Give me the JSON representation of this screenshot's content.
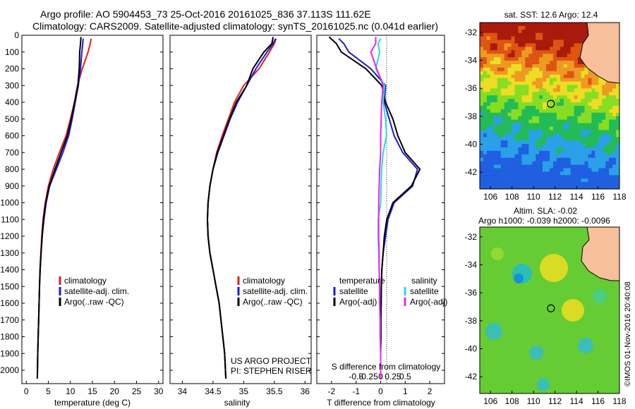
{
  "header": {
    "line1": "Argo profile: AO 5904453_73 25-Oct-2016 20161025_836 37.113S 111.62E",
    "line2": "Climatology: CARS2009. Satellite-adjusted climatology: synTS_20161025.nc (0.041d earlier)"
  },
  "colors": {
    "climatology": "#dd2020",
    "satellite": "#1a1adf",
    "argo": "#000000",
    "sal_satellite": "#22dddd",
    "sal_argo": "#ee22ee",
    "land": "#f7c09a"
  },
  "panel_t": {
    "xlabel": "temperature (deg C)",
    "xticks": [
      "0",
      "5",
      "10",
      "15",
      "20",
      "25",
      "30"
    ],
    "legend": [
      "climatology",
      "satellite-adj. clim.",
      "Argo(..raw -QC)"
    ]
  },
  "panel_s": {
    "xlabel": "salinity",
    "xticks": [
      "34",
      "34.5",
      "35",
      "35.5",
      "36"
    ],
    "legend": [
      "climatology",
      "satellite-adj. clim.",
      "Argo(..raw -QC)"
    ],
    "credit1": "US ARGO PROJECT",
    "credit2": "PI: STEPHEN RISER"
  },
  "panel_d": {
    "xlabel": "T difference from climatology",
    "xlabel_s": "S difference from climatology",
    "xticks_t": [
      "-2",
      "-1",
      "0",
      "1",
      "2"
    ],
    "xticks_s": [
      "-0.5",
      "-0.25",
      "0",
      "0.25",
      "0.5"
    ],
    "leg_temp_head": "temperature",
    "leg_sal_head": "salinity",
    "leg_items": [
      "satellite",
      "Argo(-adj)"
    ]
  },
  "depth_ticks": [
    "0",
    "100",
    "200",
    "300",
    "400",
    "500",
    "600",
    "700",
    "800",
    "900",
    "1000",
    "1100",
    "1200",
    "1300",
    "1400",
    "1500",
    "1600",
    "1700",
    "1800",
    "1900",
    "2000"
  ],
  "map_sst": {
    "title": "sat. SST: 12.6 Argo: 12.4",
    "lat_ticks": [
      "-32",
      "-34",
      "-36",
      "-38",
      "-40",
      "-42"
    ],
    "lon_ticks": [
      "106",
      "108",
      "110",
      "112",
      "114",
      "116",
      "118"
    ]
  },
  "map_sla": {
    "title1": "Altim. SLA: -0.02",
    "title2": "Argo h1000: -0.039 h2000: -0.0096",
    "lat_ticks": [
      "-32",
      "-34",
      "-36",
      "-38",
      "-40",
      "-42"
    ],
    "lon_ticks": [
      "106",
      "108",
      "110",
      "112",
      "114",
      "116",
      "118"
    ]
  },
  "side_text": "©IMOS 01-Nov-2016 20:40:08",
  "chart_data": [
    {
      "type": "line",
      "xlabel": "temperature (deg C)",
      "ylabel": "",
      "xlim": [
        -1,
        31
      ],
      "ylim": [
        2080,
        0
      ],
      "series": [
        {
          "name": "climatology",
          "x": [
            14.7,
            14.5,
            14.0,
            12.7,
            11.6,
            10.9,
            10.0,
            9.0,
            7.5,
            6.1,
            5.0,
            4.3,
            3.8,
            3.5,
            3.3,
            3.1,
            3.0,
            2.9,
            2.8,
            2.7,
            2.6,
            2.5
          ],
          "y": [
            20,
            50,
            100,
            200,
            300,
            400,
            500,
            600,
            700,
            800,
            900,
            1000,
            1100,
            1200,
            1300,
            1400,
            1500,
            1600,
            1700,
            1800,
            1900,
            2050
          ]
        },
        {
          "name": "satellite-adj. clim.",
          "x": [
            12.9,
            12.8,
            12.6,
            12.3,
            11.8,
            11.1,
            10.4,
            9.6,
            8.3,
            6.8,
            5.3,
            4.5,
            4.0,
            3.6,
            3.35,
            3.15,
            3.0,
            2.9,
            2.8,
            2.7,
            2.6,
            2.5
          ],
          "y": [
            20,
            50,
            100,
            200,
            300,
            400,
            500,
            600,
            700,
            800,
            900,
            1000,
            1100,
            1200,
            1300,
            1400,
            1500,
            1600,
            1700,
            1800,
            1900,
            2050
          ]
        },
        {
          "name": "Argo(..raw -QC)",
          "x": [
            12.4,
            12.3,
            12.1,
            12.0,
            11.7,
            11.0,
            10.2,
            9.3,
            7.9,
            6.5,
            5.2,
            4.4,
            3.9,
            3.6,
            3.35,
            3.15,
            3.0,
            2.9,
            2.8,
            2.7,
            2.6,
            2.5
          ],
          "y": [
            10,
            50,
            100,
            200,
            300,
            400,
            500,
            600,
            700,
            800,
            900,
            1000,
            1100,
            1200,
            1300,
            1400,
            1500,
            1600,
            1700,
            1800,
            1900,
            2050
          ]
        }
      ]
    },
    {
      "type": "line",
      "xlabel": "salinity",
      "ylabel": "",
      "xlim": [
        33.8,
        36.1
      ],
      "ylim": [
        2080,
        0
      ],
      "series": [
        {
          "name": "climatology",
          "x": [
            35.53,
            35.5,
            35.42,
            35.25,
            35.0,
            34.85,
            34.75,
            34.65,
            34.56,
            34.5,
            34.45,
            34.42,
            34.41,
            34.42,
            34.45,
            34.5,
            34.55,
            34.6,
            34.63,
            34.66,
            34.69,
            34.71
          ],
          "y": [
            20,
            50,
            100,
            200,
            300,
            400,
            500,
            600,
            700,
            800,
            900,
            1000,
            1100,
            1200,
            1300,
            1400,
            1500,
            1600,
            1700,
            1800,
            1900,
            2050
          ]
        },
        {
          "name": "satellite-adj. clim.",
          "x": [
            35.52,
            35.48,
            35.38,
            35.2,
            35.05,
            34.9,
            34.78,
            34.68,
            34.58,
            34.5,
            34.45,
            34.42,
            34.41,
            34.42,
            34.45,
            34.5,
            34.55,
            34.6,
            34.63,
            34.66,
            34.69,
            34.71
          ],
          "y": [
            20,
            50,
            100,
            200,
            300,
            400,
            500,
            600,
            700,
            800,
            900,
            1000,
            1100,
            1200,
            1300,
            1400,
            1500,
            1600,
            1700,
            1800,
            1900,
            2050
          ]
        },
        {
          "name": "Argo(..raw -QC)",
          "x": [
            35.48,
            35.46,
            35.33,
            35.15,
            35.05,
            34.88,
            34.77,
            34.67,
            34.57,
            34.5,
            34.45,
            34.42,
            34.41,
            34.42,
            34.45,
            34.5,
            34.55,
            34.6,
            34.63,
            34.66,
            34.69,
            34.71
          ],
          "y": [
            10,
            50,
            100,
            200,
            300,
            400,
            500,
            600,
            700,
            800,
            900,
            1000,
            1100,
            1200,
            1300,
            1400,
            1500,
            1600,
            1700,
            1800,
            1900,
            2050
          ]
        }
      ]
    },
    {
      "type": "line",
      "xlabel": "T difference from climatology",
      "ylabel": "",
      "xlim": [
        -2.6,
        2.6
      ],
      "ylim": [
        2080,
        0
      ],
      "series": [
        {
          "name": "temperature satellite",
          "x": [
            -1.7,
            -1.5,
            -1.3,
            -0.4,
            0.2,
            0.15,
            0.35,
            0.55,
            0.9,
            1.5,
            1.3,
            0.55,
            0.3,
            0.2,
            0.1,
            0.05,
            0.03,
            0.02,
            0.01,
            0.01,
            0.0,
            0.0
          ],
          "y": [
            20,
            50,
            100,
            200,
            300,
            400,
            500,
            600,
            700,
            800,
            900,
            1000,
            1100,
            1200,
            1300,
            1400,
            1500,
            1600,
            1700,
            1800,
            1900,
            2050
          ]
        },
        {
          "name": "temperature Argo(-adj)",
          "x": [
            -2.1,
            -1.8,
            -1.6,
            -0.6,
            0.05,
            0.2,
            0.5,
            0.7,
            1.0,
            1.6,
            1.25,
            0.5,
            0.25,
            0.15,
            0.1,
            0.05,
            0.03,
            0.02,
            0.01,
            0.01,
            0.0,
            0.0
          ],
          "y": [
            10,
            50,
            100,
            200,
            300,
            400,
            500,
            600,
            700,
            800,
            900,
            1000,
            1100,
            1200,
            1300,
            1400,
            1500,
            1600,
            1700,
            1800,
            1900,
            2050
          ]
        },
        {
          "name": "salinity satellite",
          "x": [
            0.0,
            -0.05,
            -0.02,
            -0.1,
            0.08,
            0.05,
            0.1,
            0.12,
            0.05,
            0.02,
            0.01,
            0.0,
            -0.05,
            -0.05,
            -0.04,
            -0.03,
            -0.02,
            -0.02,
            -0.01,
            -0.01,
            0.0,
            0.0
          ],
          "y": [
            20,
            50,
            100,
            200,
            300,
            400,
            500,
            600,
            700,
            800,
            900,
            1000,
            1100,
            1200,
            1300,
            1400,
            1500,
            1600,
            1700,
            1800,
            1900,
            2050
          ]
        },
        {
          "name": "salinity Argo(-adj)",
          "x": [
            -0.1,
            -0.1,
            -0.2,
            -0.08,
            0.05,
            0.02,
            0.01,
            0.0,
            0.0,
            -0.02,
            -0.03,
            -0.04,
            -0.04,
            -0.04,
            -0.03,
            -0.03,
            -0.02,
            -0.02,
            -0.01,
            -0.01,
            0.0,
            0.0
          ],
          "y": [
            10,
            50,
            100,
            200,
            300,
            400,
            500,
            600,
            700,
            800,
            900,
            1000,
            1100,
            1200,
            1300,
            1400,
            1500,
            1600,
            1700,
            1800,
            1900,
            2050
          ]
        }
      ]
    },
    {
      "type": "heatmap",
      "title": "sat. SST: 12.6 Argo: 12.4",
      "xlim": [
        105,
        118
      ],
      "ylim": [
        -43.2,
        -31.3
      ],
      "marker": {
        "lon": 111.62,
        "lat": -37.113
      }
    },
    {
      "type": "heatmap",
      "title": "Altim. SLA: -0.02",
      "xlim": [
        105,
        118
      ],
      "ylim": [
        -43.2,
        -31.3
      ],
      "marker": {
        "lon": 111.62,
        "lat": -37.113
      }
    }
  ]
}
